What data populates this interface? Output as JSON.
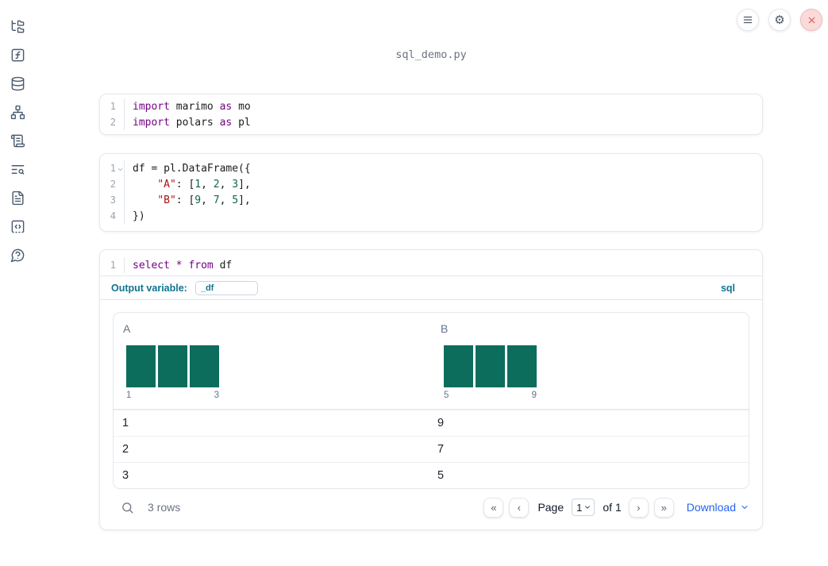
{
  "app": {
    "filename": "sql_demo.py"
  },
  "controls": {
    "settings_icon": "⚙"
  },
  "sidebar": {
    "items": [
      "file-explorer",
      "functions",
      "data-sources",
      "dependency-graph",
      "scratchpad",
      "logs",
      "documentation",
      "snippets",
      "help"
    ]
  },
  "cells": {
    "imports": {
      "line_numbers": [
        "1",
        "2"
      ],
      "lines": [
        [
          {
            "t": "kw",
            "v": "import"
          },
          {
            "t": "pl",
            "v": " marimo "
          },
          {
            "t": "kw",
            "v": "as"
          },
          {
            "t": "pl",
            "v": " mo"
          }
        ],
        [
          {
            "t": "kw",
            "v": "import"
          },
          {
            "t": "pl",
            "v": " polars "
          },
          {
            "t": "kw",
            "v": "as"
          },
          {
            "t": "pl",
            "v": " pl"
          }
        ]
      ]
    },
    "dataframe": {
      "line_numbers": [
        "1",
        "2",
        "3",
        "4"
      ],
      "lines": [
        [
          {
            "t": "pl",
            "v": "df = pl.DataFrame({"
          }
        ],
        [
          {
            "t": "pl",
            "v": "    "
          },
          {
            "t": "str",
            "v": "\"A\""
          },
          {
            "t": "pl",
            "v": ": ["
          },
          {
            "t": "num",
            "v": "1"
          },
          {
            "t": "pl",
            "v": ", "
          },
          {
            "t": "num",
            "v": "2"
          },
          {
            "t": "pl",
            "v": ", "
          },
          {
            "t": "num",
            "v": "3"
          },
          {
            "t": "pl",
            "v": "],"
          }
        ],
        [
          {
            "t": "pl",
            "v": "    "
          },
          {
            "t": "str",
            "v": "\"B\""
          },
          {
            "t": "pl",
            "v": ": ["
          },
          {
            "t": "num",
            "v": "9"
          },
          {
            "t": "pl",
            "v": ", "
          },
          {
            "t": "num",
            "v": "7"
          },
          {
            "t": "pl",
            "v": ", "
          },
          {
            "t": "num",
            "v": "5"
          },
          {
            "t": "pl",
            "v": "],"
          }
        ],
        [
          {
            "t": "pl",
            "v": "})"
          }
        ]
      ]
    },
    "sql": {
      "line_numbers": [
        "1"
      ],
      "lines": [
        [
          {
            "t": "kw",
            "v": "select"
          },
          {
            "t": "pl",
            "v": " "
          },
          {
            "t": "kw",
            "v": "*"
          },
          {
            "t": "pl",
            "v": " "
          },
          {
            "t": "kw",
            "v": "from"
          },
          {
            "t": "pl",
            "v": " df"
          }
        ]
      ],
      "output_variable_label": "Output variable:",
      "output_variable_value": "_df",
      "language_badge": "sql"
    }
  },
  "table": {
    "columns": [
      {
        "name": "A",
        "histogram": {
          "bar_heights": [
            1,
            1,
            1
          ],
          "min_label": "1",
          "max_label": "3"
        }
      },
      {
        "name": "B",
        "histogram": {
          "bar_heights": [
            1,
            1,
            1
          ],
          "min_label": "5",
          "max_label": "9"
        }
      }
    ],
    "rows": [
      [
        "1",
        "9"
      ],
      [
        "2",
        "7"
      ],
      [
        "3",
        "5"
      ]
    ],
    "footer": {
      "row_count": "3 rows",
      "pagination": {
        "first": "«",
        "prev": "‹",
        "page_label": "Page",
        "page_value": "1",
        "of_label": "of 1",
        "next": "›",
        "last": "»"
      },
      "download_label": "Download"
    }
  },
  "colors": {
    "histogram_bar": "#0d6d5d",
    "accent_blue": "#2563eb",
    "sql_teal": "#0e7490",
    "close_red": "#d95454"
  }
}
